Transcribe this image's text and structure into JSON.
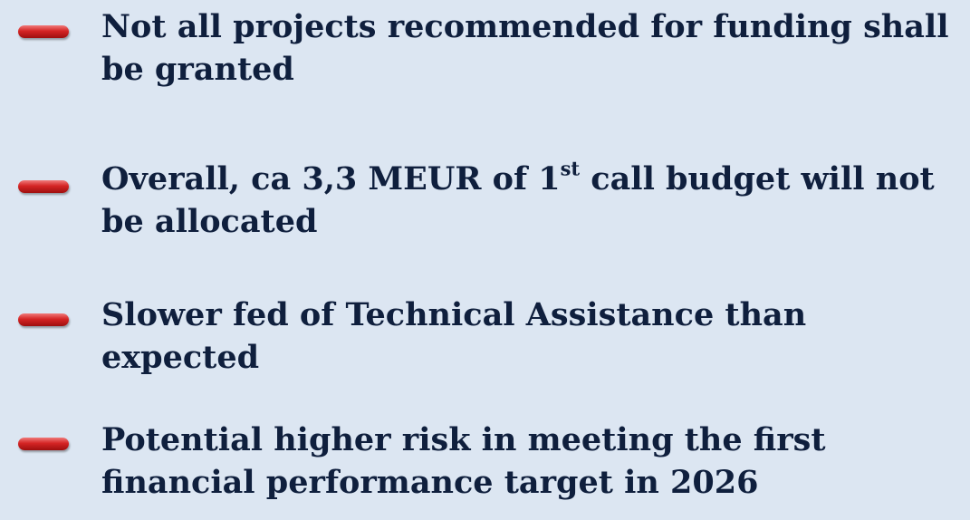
{
  "items": [
    {
      "text": "Not all projects recommended for funding shall be granted"
    },
    {
      "text": "Overall, ca 3,3 MEUR of 1",
      "sup": "st",
      "rest": " call  budget will not be allocated"
    },
    {
      "text": "Slower fed of Technical Assistance than expected"
    },
    {
      "text": "Potential higher risk in meeting the first financial performance target in 2026"
    }
  ]
}
